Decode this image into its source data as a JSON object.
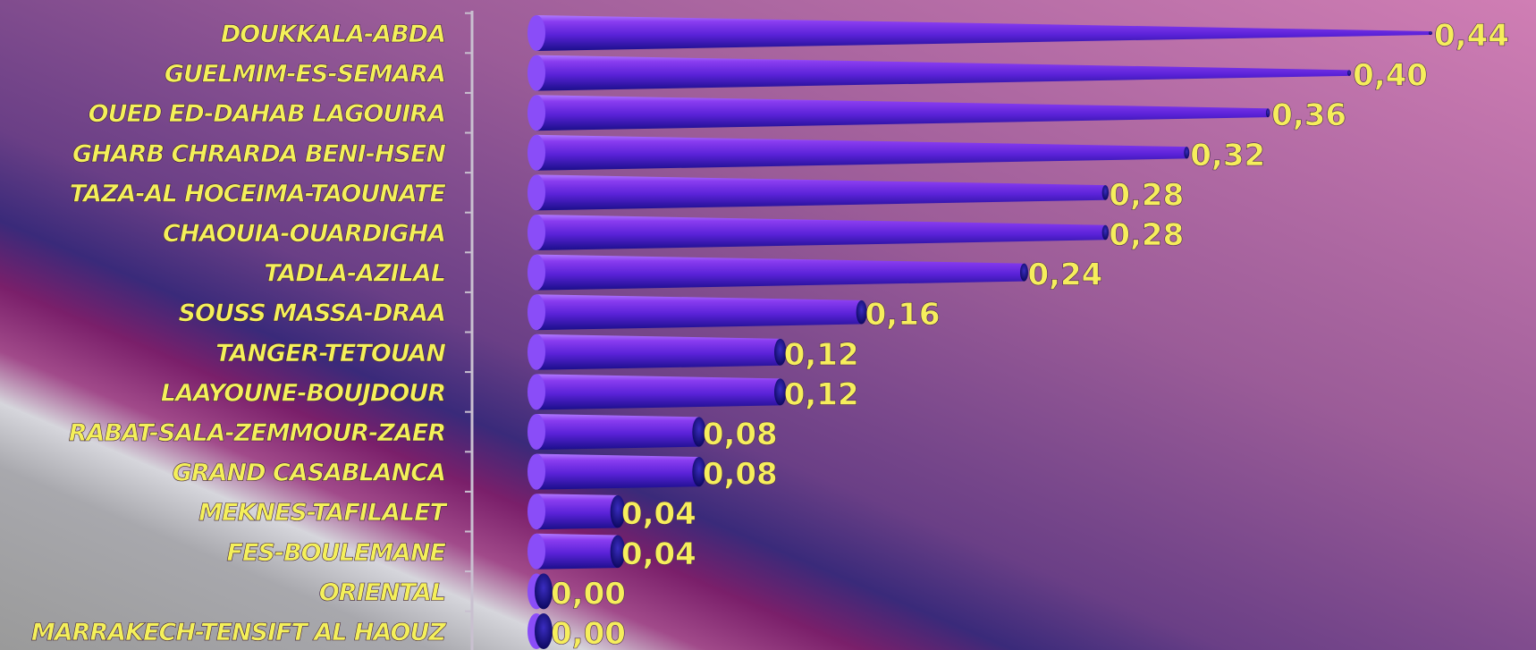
{
  "chart_data": {
    "type": "bar",
    "orientation": "horizontal",
    "categories": [
      "DOUKKALA-ABDA",
      "GUELMIM-ES-SEMARA",
      "OUED ED-DAHAB LAGOUIRA",
      "GHARB CHRARDA BENI-HSEN",
      "TAZA-AL HOCEIMA-TAOUNATE",
      "CHAOUIA-OUARDIGHA",
      "TADLA-AZILAL",
      "SOUSS MASSA-DRAA",
      "TANGER-TETOUAN",
      "LAAYOUNE-BOUJDOUR",
      "RABAT-SALA-ZEMMOUR-ZAER",
      "GRAND CASABLANCA",
      "MEKNES-TAFILALET",
      "FES-BOULEMANE",
      "ORIENTAL",
      "MARRAKECH-TENSIFT AL HAOUZ"
    ],
    "values": [
      0.44,
      0.4,
      0.36,
      0.32,
      0.28,
      0.28,
      0.24,
      0.16,
      0.12,
      0.12,
      0.08,
      0.08,
      0.04,
      0.04,
      0.0,
      0.0
    ],
    "data_labels": [
      "0,44",
      "0,40",
      "0,36",
      "0,32",
      "0,28",
      "0,28",
      "0,24",
      "0,16",
      "0,12",
      "0,12",
      "0,08",
      "0,08",
      "0,04",
      "0,04",
      "0,00",
      "0,00"
    ],
    "xlim": [
      0,
      0.44
    ],
    "grid": false,
    "colors": {
      "bar_light": "#8a3df0",
      "bar_mid": "#5a22d8",
      "bar_dark": "#1a0f8a",
      "label_text": "#f4f05a",
      "value_text": "#f6ee5c",
      "axis": "#c9c0d0"
    }
  }
}
